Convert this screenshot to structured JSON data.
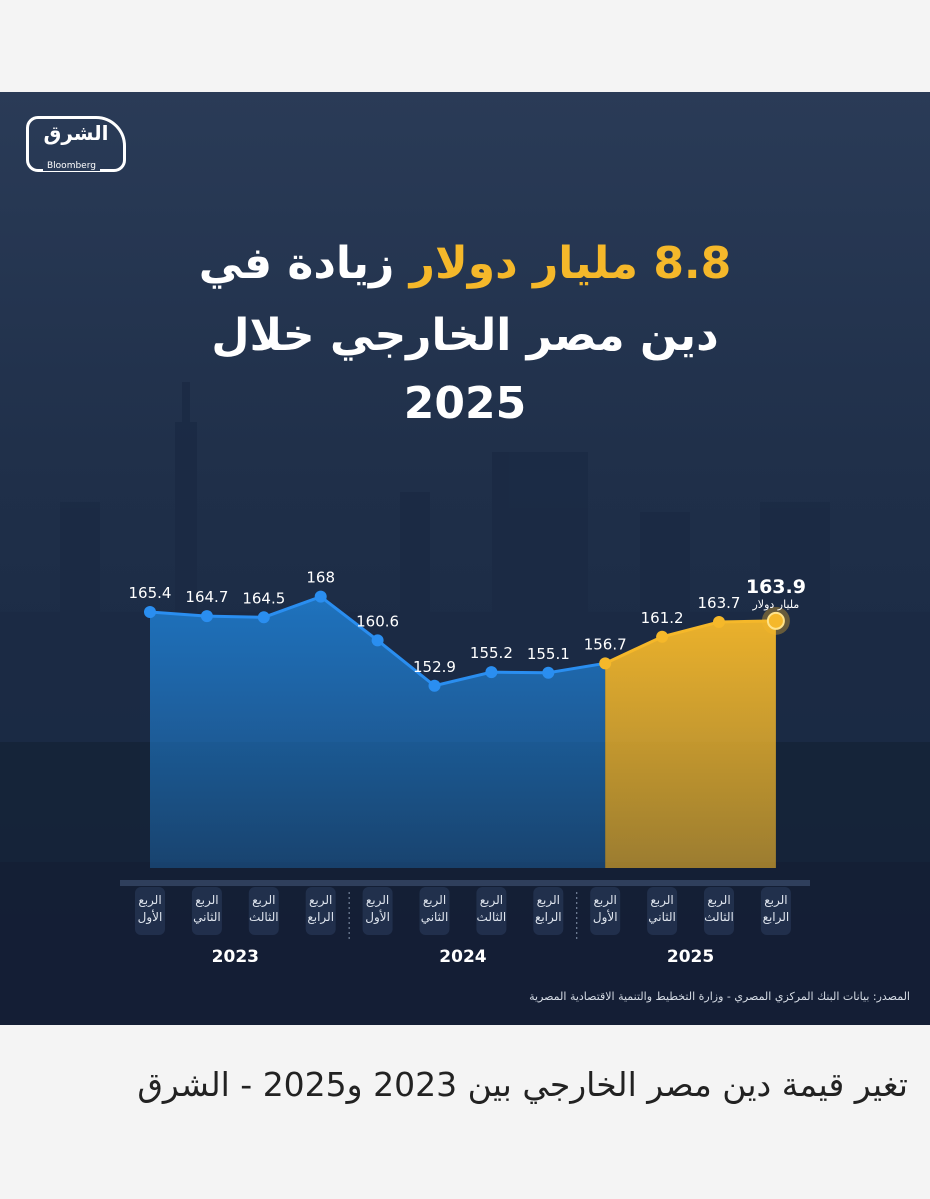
{
  "logo": {
    "arabic": "الشرق",
    "english": "Bloomberg"
  },
  "headline": {
    "line1_accent": "8.8 مليار دولار",
    "line1_rest": "زيادة في",
    "line2": "دين مصر الخارجي خلال",
    "line3": "2025"
  },
  "colors": {
    "series_2023_2024": "#1f7fd3",
    "series_2025": "#f5b82a",
    "background": "#22324f"
  },
  "chart_data": {
    "type": "area",
    "x": [
      "الربع الأول 2023",
      "الربع الثاني 2023",
      "الربع الثالث 2023",
      "الربع الرابع 2023",
      "الربع الأول 2024",
      "الربع الثاني 2024",
      "الربع الثالث 2024",
      "الربع الرابع 2024",
      "الربع الأول 2025",
      "الربع الثاني 2025",
      "الربع الثالث 2025",
      "الربع الرابع 2025"
    ],
    "values": [
      165.4,
      164.7,
      164.5,
      168,
      160.6,
      152.9,
      155.2,
      155.1,
      156.7,
      161.2,
      163.7,
      163.9
    ],
    "value_labels": [
      "165.4",
      "164.7",
      "164.5",
      "168",
      "160.6",
      "152.9",
      "155.2",
      "155.1",
      "156.7",
      "161.2",
      "163.7",
      "163.9"
    ],
    "last_value_unit": "مليار دولار",
    "quarter_lines": [
      [
        "الربع",
        "الأول"
      ],
      [
        "الربع",
        "الثاني"
      ],
      [
        "الربع",
        "الثالث"
      ],
      [
        "الربع",
        "الرابع"
      ],
      [
        "الربع",
        "الأول"
      ],
      [
        "الربع",
        "الثاني"
      ],
      [
        "الربع",
        "الثالث"
      ],
      [
        "الربع",
        "الرابع"
      ],
      [
        "الربع",
        "الأول"
      ],
      [
        "الربع",
        "الثاني"
      ],
      [
        "الربع",
        "الثالث"
      ],
      [
        "الربع",
        "الرابع"
      ]
    ],
    "years": [
      "2023",
      "2024",
      "2025"
    ],
    "highlight_from_index": 8
  },
  "source": "المصدر: بيانات البنك المركزي المصري - وزارة التخطيط والتنمية الاقتصادية المصرية",
  "caption": "تغير قيمة دين مصر الخارجي بين 2023 و2025 - الشرق"
}
